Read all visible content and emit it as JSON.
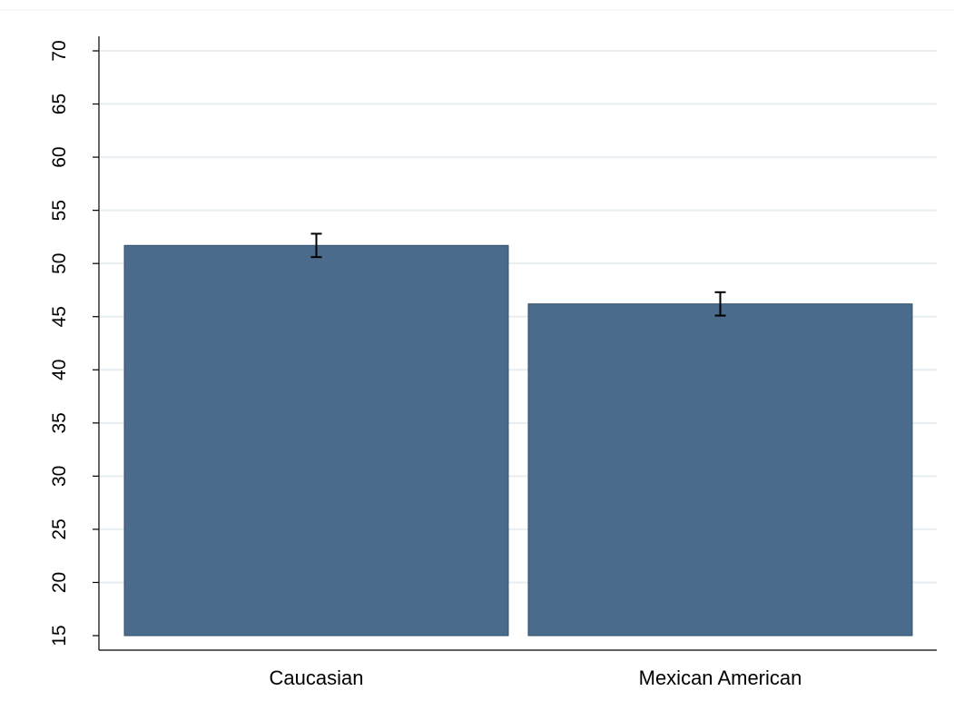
{
  "chart_data": {
    "type": "bar",
    "title": "",
    "xlabel": "",
    "ylabel": "",
    "categories": [
      "Caucasian",
      "Mexican American"
    ],
    "series": [
      {
        "values": [
          51.7,
          46.2
        ],
        "error_low": [
          50.6,
          45.1
        ],
        "error_high": [
          52.8,
          47.3
        ]
      }
    ],
    "ylim": [
      15,
      70
    ],
    "yticks": [
      "15",
      "20",
      "25",
      "30",
      "35",
      "40",
      "45",
      "50",
      "55",
      "60",
      "65",
      "70"
    ],
    "grid": true,
    "legend": "none",
    "colors": {
      "bar": "#4a6b8c",
      "bar_edge": "#34506c",
      "grid": "#e6eef1",
      "axis": "#000000",
      "error_bar": "#000000"
    }
  }
}
